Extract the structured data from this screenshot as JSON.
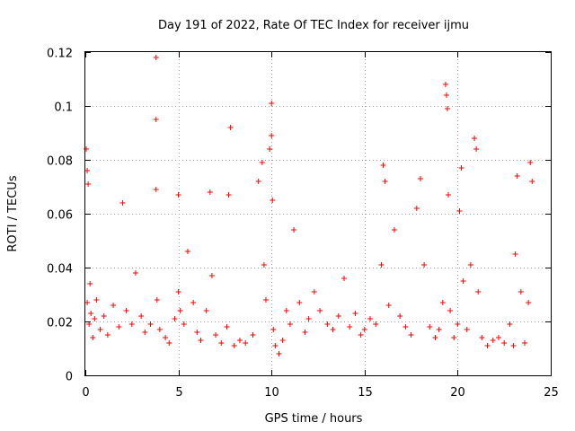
{
  "chart_data": {
    "type": "scatter",
    "title": "Day 191 of 2022, Rate Of TEC Index for receiver ijmu",
    "xlabel": "GPS time / hours",
    "ylabel": "ROTI / TECUs",
    "xlim": [
      0,
      25
    ],
    "ylim": [
      0,
      0.12
    ],
    "xticks": [
      "0",
      "5",
      "10",
      "15",
      "20",
      "25"
    ],
    "yticks": [
      "0",
      "0.02",
      "0.04",
      "0.06",
      "0.08",
      "0.1",
      "0.12"
    ],
    "grid": true,
    "marker": "plus",
    "color": "#ff0000",
    "series": [
      {
        "x": [
          0.05,
          0.1,
          0.1,
          0.15,
          0.2,
          0.25,
          0.3,
          0.4,
          0.5,
          0.6,
          0.8,
          1.0,
          1.2,
          1.5,
          1.8,
          2.0,
          2.2,
          2.5,
          2.7,
          3.0,
          3.2,
          3.5,
          3.8,
          3.8,
          3.8,
          3.85,
          4.0,
          4.3,
          4.5,
          4.8,
          5.0,
          5.0,
          5.1,
          5.3,
          5.5,
          5.8,
          6.0,
          6.2,
          6.5,
          6.7,
          6.8,
          7.0,
          7.3,
          7.6,
          7.7,
          7.8,
          8.0,
          8.3,
          8.6,
          9.0,
          9.3,
          9.5,
          9.6,
          9.7,
          9.9,
          10.0,
          10.0,
          10.05,
          10.1,
          10.2,
          10.4,
          10.6,
          10.8,
          11.0,
          11.2,
          11.5,
          11.8,
          12.0,
          12.3,
          12.6,
          13.0,
          13.3,
          13.6,
          13.9,
          14.2,
          14.5,
          14.8,
          15.0,
          15.3,
          15.6,
          15.9,
          16.0,
          16.1,
          16.3,
          16.6,
          16.9,
          17.2,
          17.5,
          17.8,
          18.0,
          18.2,
          18.5,
          18.8,
          19.0,
          19.2,
          19.35,
          19.4,
          19.45,
          19.5,
          19.6,
          19.8,
          20.0,
          20.1,
          20.2,
          20.3,
          20.5,
          20.7,
          20.9,
          21.0,
          21.1,
          21.3,
          21.6,
          21.9,
          22.2,
          22.5,
          22.8,
          23.0,
          23.1,
          23.2,
          23.4,
          23.6,
          23.8,
          23.9,
          24.0
        ],
        "y": [
          0.084,
          0.076,
          0.027,
          0.071,
          0.019,
          0.034,
          0.023,
          0.014,
          0.021,
          0.028,
          0.017,
          0.022,
          0.015,
          0.026,
          0.018,
          0.064,
          0.024,
          0.019,
          0.038,
          0.022,
          0.016,
          0.019,
          0.118,
          0.095,
          0.069,
          0.028,
          0.017,
          0.014,
          0.012,
          0.021,
          0.067,
          0.031,
          0.024,
          0.019,
          0.046,
          0.027,
          0.016,
          0.013,
          0.024,
          0.068,
          0.037,
          0.015,
          0.012,
          0.018,
          0.067,
          0.092,
          0.011,
          0.013,
          0.012,
          0.015,
          0.072,
          0.079,
          0.041,
          0.028,
          0.084,
          0.101,
          0.089,
          0.065,
          0.017,
          0.011,
          0.008,
          0.013,
          0.024,
          0.019,
          0.054,
          0.027,
          0.016,
          0.021,
          0.031,
          0.024,
          0.019,
          0.017,
          0.022,
          0.036,
          0.018,
          0.023,
          0.015,
          0.017,
          0.021,
          0.019,
          0.041,
          0.078,
          0.072,
          0.026,
          0.054,
          0.022,
          0.018,
          0.015,
          0.062,
          0.073,
          0.041,
          0.018,
          0.014,
          0.017,
          0.027,
          0.108,
          0.104,
          0.099,
          0.067,
          0.024,
          0.014,
          0.019,
          0.061,
          0.077,
          0.035,
          0.017,
          0.041,
          0.088,
          0.084,
          0.031,
          0.014,
          0.011,
          0.013,
          0.014,
          0.012,
          0.019,
          0.011,
          0.045,
          0.074,
          0.031,
          0.012,
          0.027,
          0.079,
          0.072
        ]
      }
    ]
  }
}
